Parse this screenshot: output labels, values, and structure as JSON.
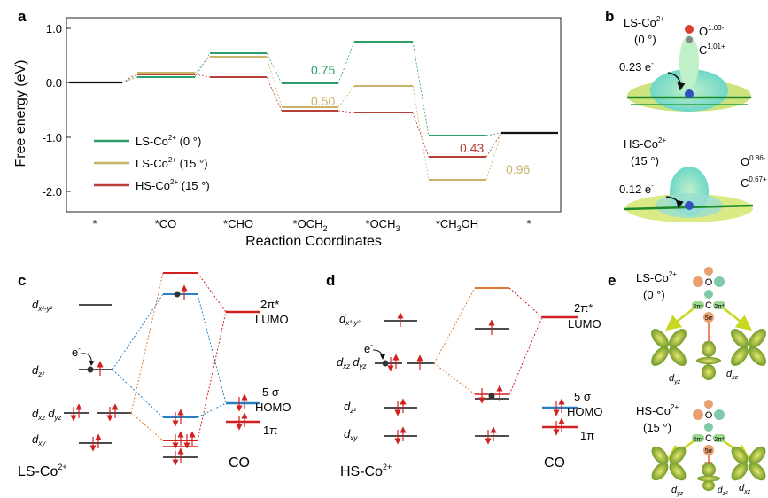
{
  "panel_letters": {
    "a": "a",
    "b": "b",
    "c": "c",
    "d": "d",
    "e": "e"
  },
  "panel_a": {
    "ylabel": "Free energy (eV)",
    "xlabel": "Reaction Coordinates",
    "yticks": [
      "1.0",
      "0.0",
      "-1.0",
      "-2.0"
    ],
    "xticks": [
      "*",
      "*CO",
      "*CHO",
      "*OCH",
      "*OCH",
      "*CH",
      "OH",
      "*"
    ],
    "xtick_subs": {
      "och2": "2",
      "och3": "3",
      "ch3": "3"
    },
    "annotations": {
      "green": "0.75",
      "tan": "0.50",
      "red": "0.43",
      "tan2": "0.96"
    },
    "legend": [
      {
        "label": "LS-Co",
        "sup": "2+",
        "suffix": " (0 °)",
        "color": "#2e9e6a"
      },
      {
        "label": "LS-Co",
        "sup": "2+",
        "suffix": " (15 °)",
        "color": "#c8b46a"
      },
      {
        "label": "HS-Co",
        "sup": "2+",
        "suffix": " (15 °)",
        "color": "#b8403a"
      }
    ],
    "colors": {
      "green": "#2e9e6a",
      "tan": "#c8b46a",
      "red": "#b8403a",
      "black": "#111111"
    }
  },
  "panel_b": {
    "ls_title": "LS-Co",
    "ls_sup": "2+",
    "ls_angle": "(0 °)",
    "ls_O": "O",
    "ls_O_sup": "1.03-",
    "ls_C": "C",
    "ls_C_sup": "1.01+",
    "ls_e": "0.23 e",
    "ls_e_sup": "-",
    "hs_title": "HS-Co",
    "hs_sup": "2+",
    "hs_angle": "(15 °)",
    "hs_O": "O",
    "hs_O_sup": "0.86-",
    "hs_C": "C",
    "hs_C_sup": "0.67+",
    "hs_e": "0.12 e",
    "hs_e_sup": "-"
  },
  "panel_c": {
    "title": "LS-Co",
    "title_sup": "2+",
    "co": "CO",
    "lumo_a": "2π*",
    "lumo_b": "LUMO",
    "homo_a": "5 σ",
    "homo_b": "HOMO",
    "pi": "1π",
    "d_main": "d",
    "sub_x2y2": "x²-y²",
    "sub_z2": "z²",
    "sub_xz": "xz",
    "sub_yz": "yz",
    "sub_xy": "xy",
    "e_label": "e",
    "e_sup": "-"
  },
  "panel_d": {
    "title": "HS-Co",
    "title_sup": "2+",
    "co": "CO",
    "lumo_a": "2π*",
    "lumo_b": "LUMO",
    "homo_a": "5 σ",
    "homo_b": "HOMO",
    "pi": "1π",
    "d_main": "d",
    "sub_x2y2": "x²-y²",
    "sub_xz": "xz",
    "sub_yz": "yz",
    "sub_z2": "z²",
    "sub_xy": "xy",
    "e_label": "e",
    "e_sup": "-"
  },
  "panel_e": {
    "ls_title": "LS-Co",
    "ls_sup": "2+",
    "ls_angle": "(0 °)",
    "hs_title": "HS-Co",
    "hs_sup": "2+",
    "hs_angle": "(15 °)",
    "d_main": "d",
    "sub_yz": "yz",
    "sub_xz": "xz",
    "sub_z2": "z²",
    "mo_O": "O",
    "mo_C": "C",
    "mo_2pi": "2π*",
    "mo_5s": "5σ"
  }
}
